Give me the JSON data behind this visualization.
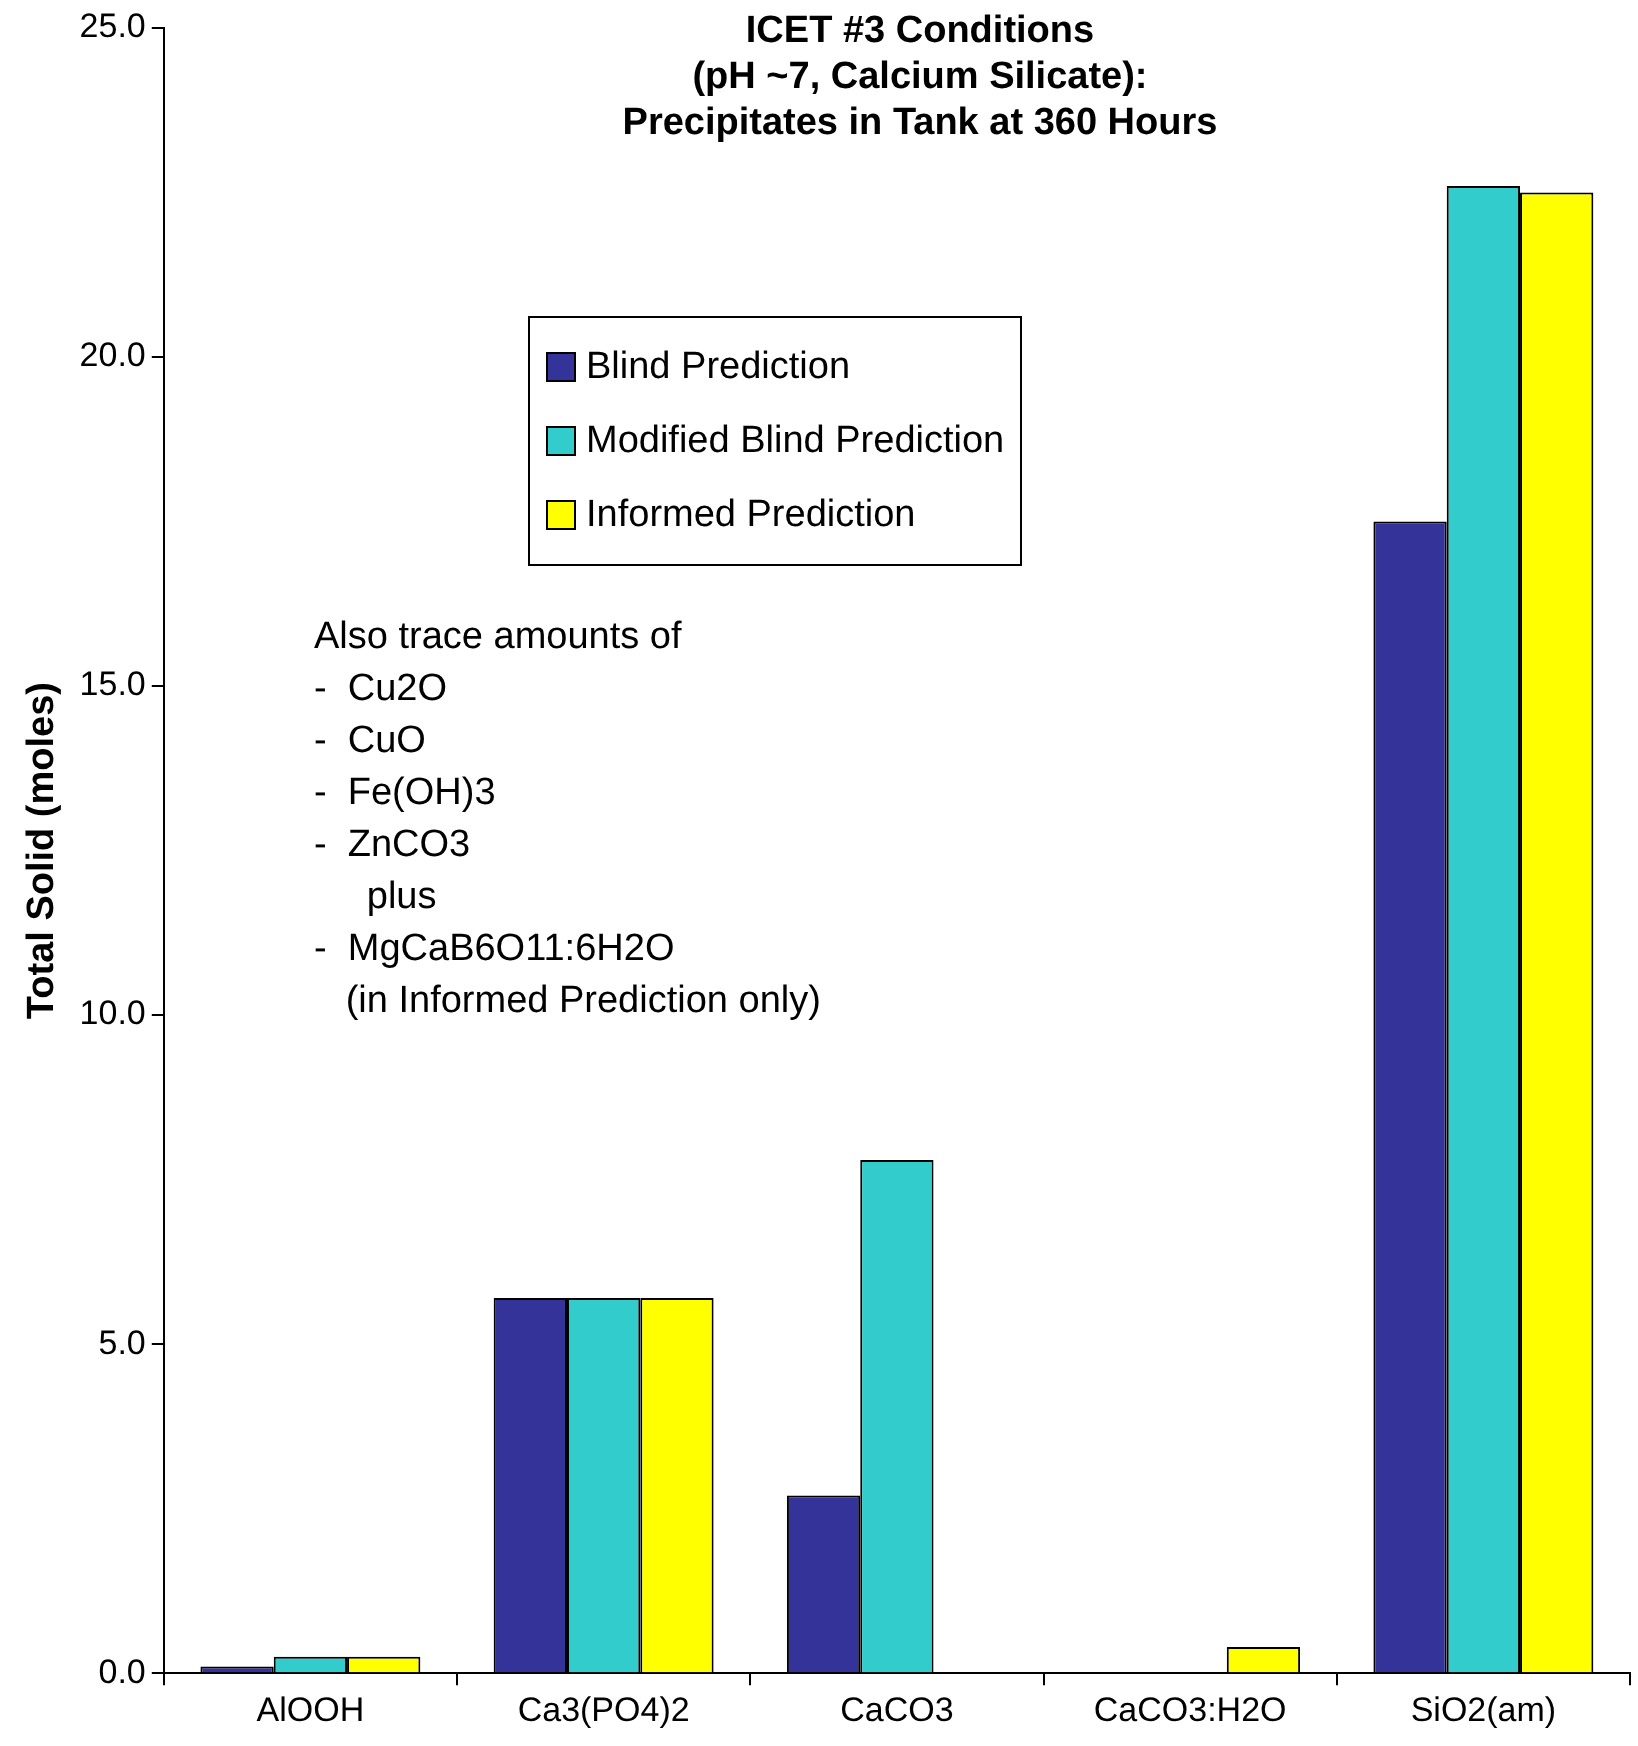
{
  "chart_data": {
    "type": "bar",
    "title": "ICET #3 Conditions\n(pH ~7, Calcium Silicate):\nPrecipitates in Tank at 360 Hours",
    "ylabel": "Total Solid (moles)",
    "categories": [
      "AlOOH",
      "Ca3(PO4)2",
      "CaCO3",
      "CaCO3:H2O",
      "SiO2(am)"
    ],
    "series": [
      {
        "name": "Blind Prediction",
        "color": "#333399",
        "values": [
          0.1,
          5.7,
          2.7,
          0,
          17.5
        ]
      },
      {
        "name": "Modified Blind Prediction",
        "color": "#33cccc",
        "values": [
          0.25,
          5.7,
          7.8,
          0,
          22.6
        ]
      },
      {
        "name": "Informed Prediction",
        "color": "#ffff00",
        "values": [
          0.25,
          5.7,
          0,
          0.4,
          22.5
        ]
      }
    ],
    "ylim": [
      0,
      25
    ],
    "yticks": [
      {
        "value": 0,
        "label": "0.0"
      },
      {
        "value": 5,
        "label": "5.0"
      },
      {
        "value": 10,
        "label": "10.0"
      },
      {
        "value": 15,
        "label": "15.0"
      },
      {
        "value": 20,
        "label": "20.0"
      },
      {
        "value": 25,
        "label": "25.0"
      }
    ],
    "grid": false,
    "legend": "top",
    "annotations": [
      "Also trace amounts of\n-  Cu2O\n-  CuO\n-  Fe(OH)3\n-  ZnCO3\n     plus\n-  MgCaB6O11:6H2O\n   (in Informed Prediction only)"
    ]
  }
}
